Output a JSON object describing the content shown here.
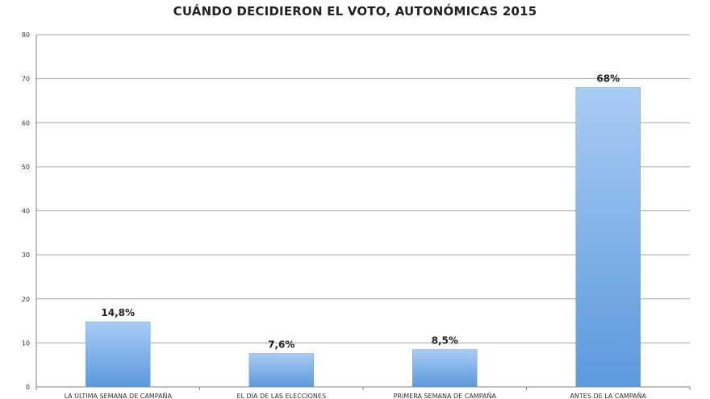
{
  "chart_data": {
    "type": "bar",
    "title": "CUÁNDO DECIDIERON EL VOTO, AUTONÓMICAS 2015",
    "categories": [
      "LA ÚLTIMA SEMANA DE CAMPAÑA",
      "EL DÍA DE LAS ELECCIONES",
      "PRIMERA SEMANA DE CAMPAÑA",
      "ANTES DE LA CAMPAÑA"
    ],
    "values": [
      14.8,
      7.6,
      8.5,
      68
    ],
    "data_labels": [
      "14,8%",
      "7,6%",
      "8,5%",
      "68%"
    ],
    "ylim": [
      0,
      80
    ],
    "yticks": [
      0,
      10,
      20,
      30,
      40,
      50,
      60,
      70,
      80
    ],
    "xlabel": "",
    "ylabel": "",
    "grid": true,
    "legend": "none",
    "colors": {
      "bar_top": "#a9ccf4",
      "bar_bottom": "#5b99dc",
      "grid": "#a6a6a6",
      "axis": "#7f7f7f"
    }
  }
}
